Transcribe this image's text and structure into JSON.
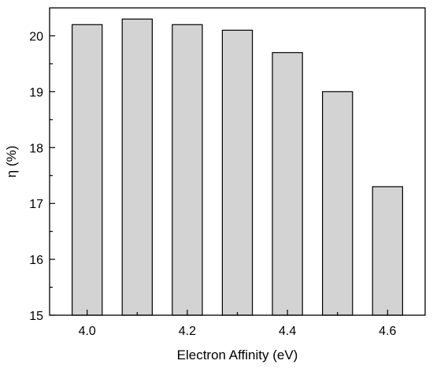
{
  "chart_data": {
    "type": "bar",
    "title": "",
    "xlabel": "Electron Affinity (eV)",
    "ylabel": "η (%)",
    "x": [
      4.0,
      4.1,
      4.2,
      4.3,
      4.4,
      4.5,
      4.6
    ],
    "values": [
      20.2,
      20.3,
      20.2,
      20.1,
      19.7,
      19.0,
      17.3
    ],
    "xlim": [
      3.925,
      4.675
    ],
    "ylim": [
      15,
      20.5
    ],
    "xticks": [
      4.0,
      4.2,
      4.4,
      4.6
    ],
    "xtick_labels": [
      "4.0",
      "4.2",
      "4.4",
      "4.6"
    ],
    "yticks": [
      15,
      16,
      17,
      18,
      19,
      20
    ],
    "ytick_labels": [
      "15",
      "16",
      "17",
      "18",
      "19",
      "20"
    ],
    "bar_color": "#d3d3d3",
    "grid": false,
    "legend": "none"
  }
}
